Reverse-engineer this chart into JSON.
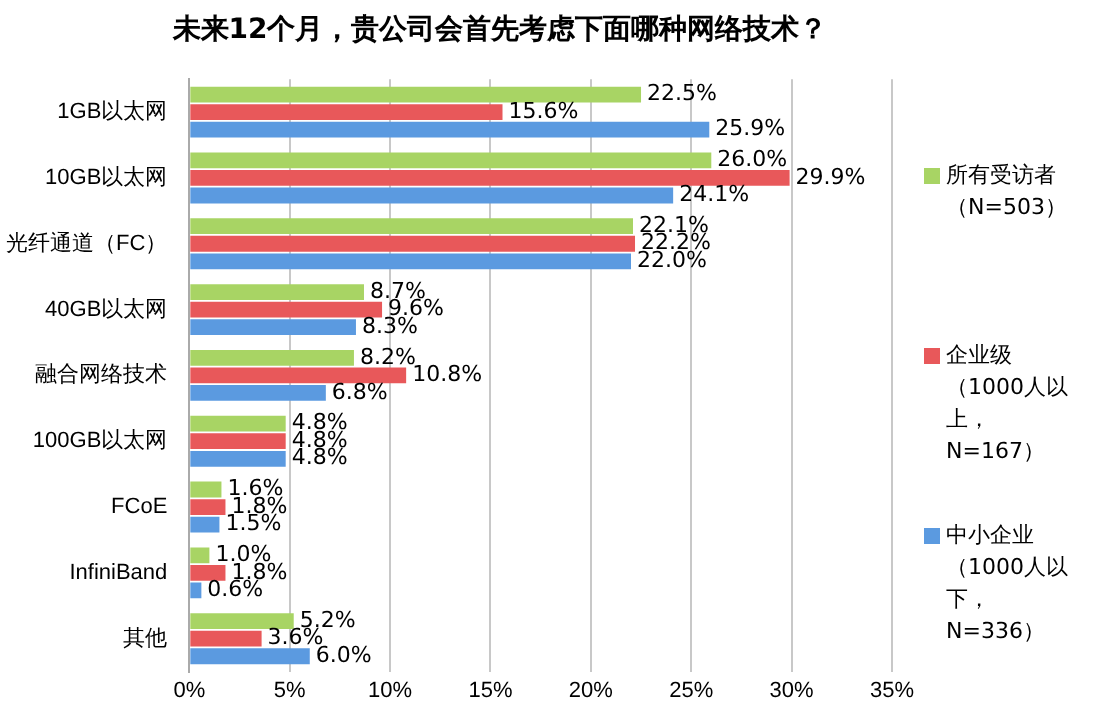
{
  "chart_data": {
    "type": "bar",
    "orientation": "horizontal",
    "title": "未来12个月，贵公司会首先考虑下面哪种网络技术？",
    "categories": [
      "1GB以太网",
      "10GB以太网",
      "光纤通道（FC）",
      "40GB以太网",
      "融合网络技术",
      "100GB以太网",
      "FCoE",
      "InfiniBand",
      "其他"
    ],
    "series": [
      {
        "name": "所有受访者（N=503）",
        "color": "#a8d464",
        "values": [
          22.5,
          26.0,
          22.1,
          8.7,
          8.2,
          4.8,
          1.6,
          1.0,
          5.2
        ],
        "value_labels": [
          "22.5%",
          "26.0%",
          "22.1%",
          "8.7%",
          "8.2%",
          "4.8%",
          "1.6%",
          "1.0%",
          "5.2%"
        ]
      },
      {
        "name": "企业级（1000人以上，N=167）",
        "color": "#e8585a",
        "values": [
          15.6,
          29.9,
          22.2,
          9.6,
          10.8,
          4.8,
          1.8,
          1.8,
          3.6
        ],
        "value_labels": [
          "15.6%",
          "29.9%",
          "22.2%",
          "9.6%",
          "10.8%",
          "4.8%",
          "1.8%",
          "1.8%",
          "3.6%"
        ]
      },
      {
        "name": "中小企业（1000人以下，N=336）",
        "color": "#5b9ae0",
        "values": [
          25.9,
          24.1,
          22.0,
          8.3,
          6.8,
          4.8,
          1.5,
          0.6,
          6.0
        ],
        "value_labels": [
          "25.9%",
          "24.1%",
          "22.0%",
          "8.3%",
          "6.8%",
          "4.8%",
          "1.5%",
          "0.6%",
          "6.0%"
        ]
      }
    ],
    "xlim": [
      0,
      35
    ],
    "xticks": [
      {
        "value": 0,
        "label": "0%"
      },
      {
        "value": 5,
        "label": "5%"
      },
      {
        "value": 10,
        "label": "10%"
      },
      {
        "value": 15,
        "label": "15%"
      },
      {
        "value": 20,
        "label": "20%"
      },
      {
        "value": 25,
        "label": "25%"
      },
      {
        "value": 30,
        "label": "30%"
      },
      {
        "value": 35,
        "label": "35%"
      }
    ],
    "grid": "x",
    "legend": "right"
  }
}
